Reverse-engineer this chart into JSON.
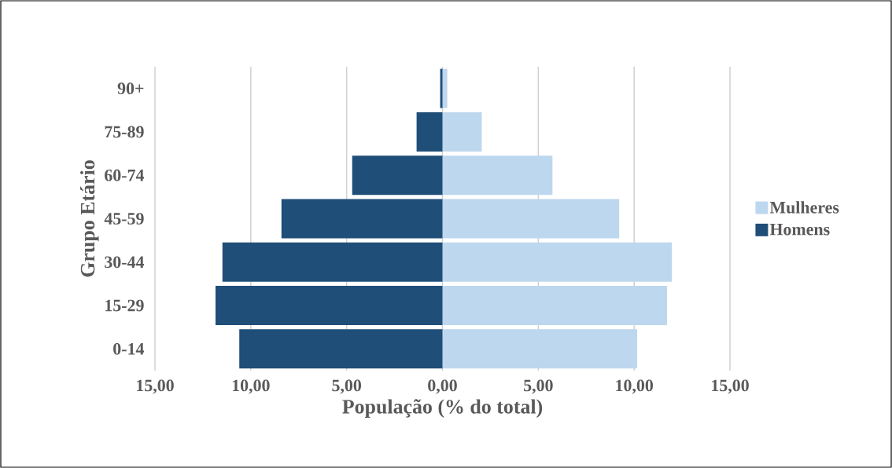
{
  "chart_data": {
    "type": "bar",
    "orientation": "horizontal",
    "stacked": true,
    "xlabel": "População (% do total)",
    "ylabel": "Grupo Etário",
    "categories": [
      "90+",
      "75-89",
      "60-74",
      "45-59",
      "30-44",
      "15-29",
      "0-14"
    ],
    "series": [
      {
        "name": "Mulheres",
        "color": "#bdd7ee",
        "values": [
          0.25,
          2.05,
          5.74,
          9.22,
          11.97,
          11.72,
          10.16
        ]
      },
      {
        "name": "Homens",
        "color": "#1f4e79",
        "values": [
          -0.12,
          -1.35,
          -4.71,
          -8.4,
          -11.48,
          -11.84,
          -10.6
        ]
      }
    ],
    "xlim": [
      -15,
      15
    ],
    "xticks": [
      {
        "value": -15,
        "label": "15,00"
      },
      {
        "value": -10,
        "label": "10,00"
      },
      {
        "value": -5,
        "label": "5,00"
      },
      {
        "value": 0,
        "label": "0,00"
      },
      {
        "value": 5,
        "label": "5,00"
      },
      {
        "value": 10,
        "label": "10,00"
      },
      {
        "value": 15,
        "label": "15,00"
      }
    ],
    "grid": "x",
    "legend": "right"
  }
}
